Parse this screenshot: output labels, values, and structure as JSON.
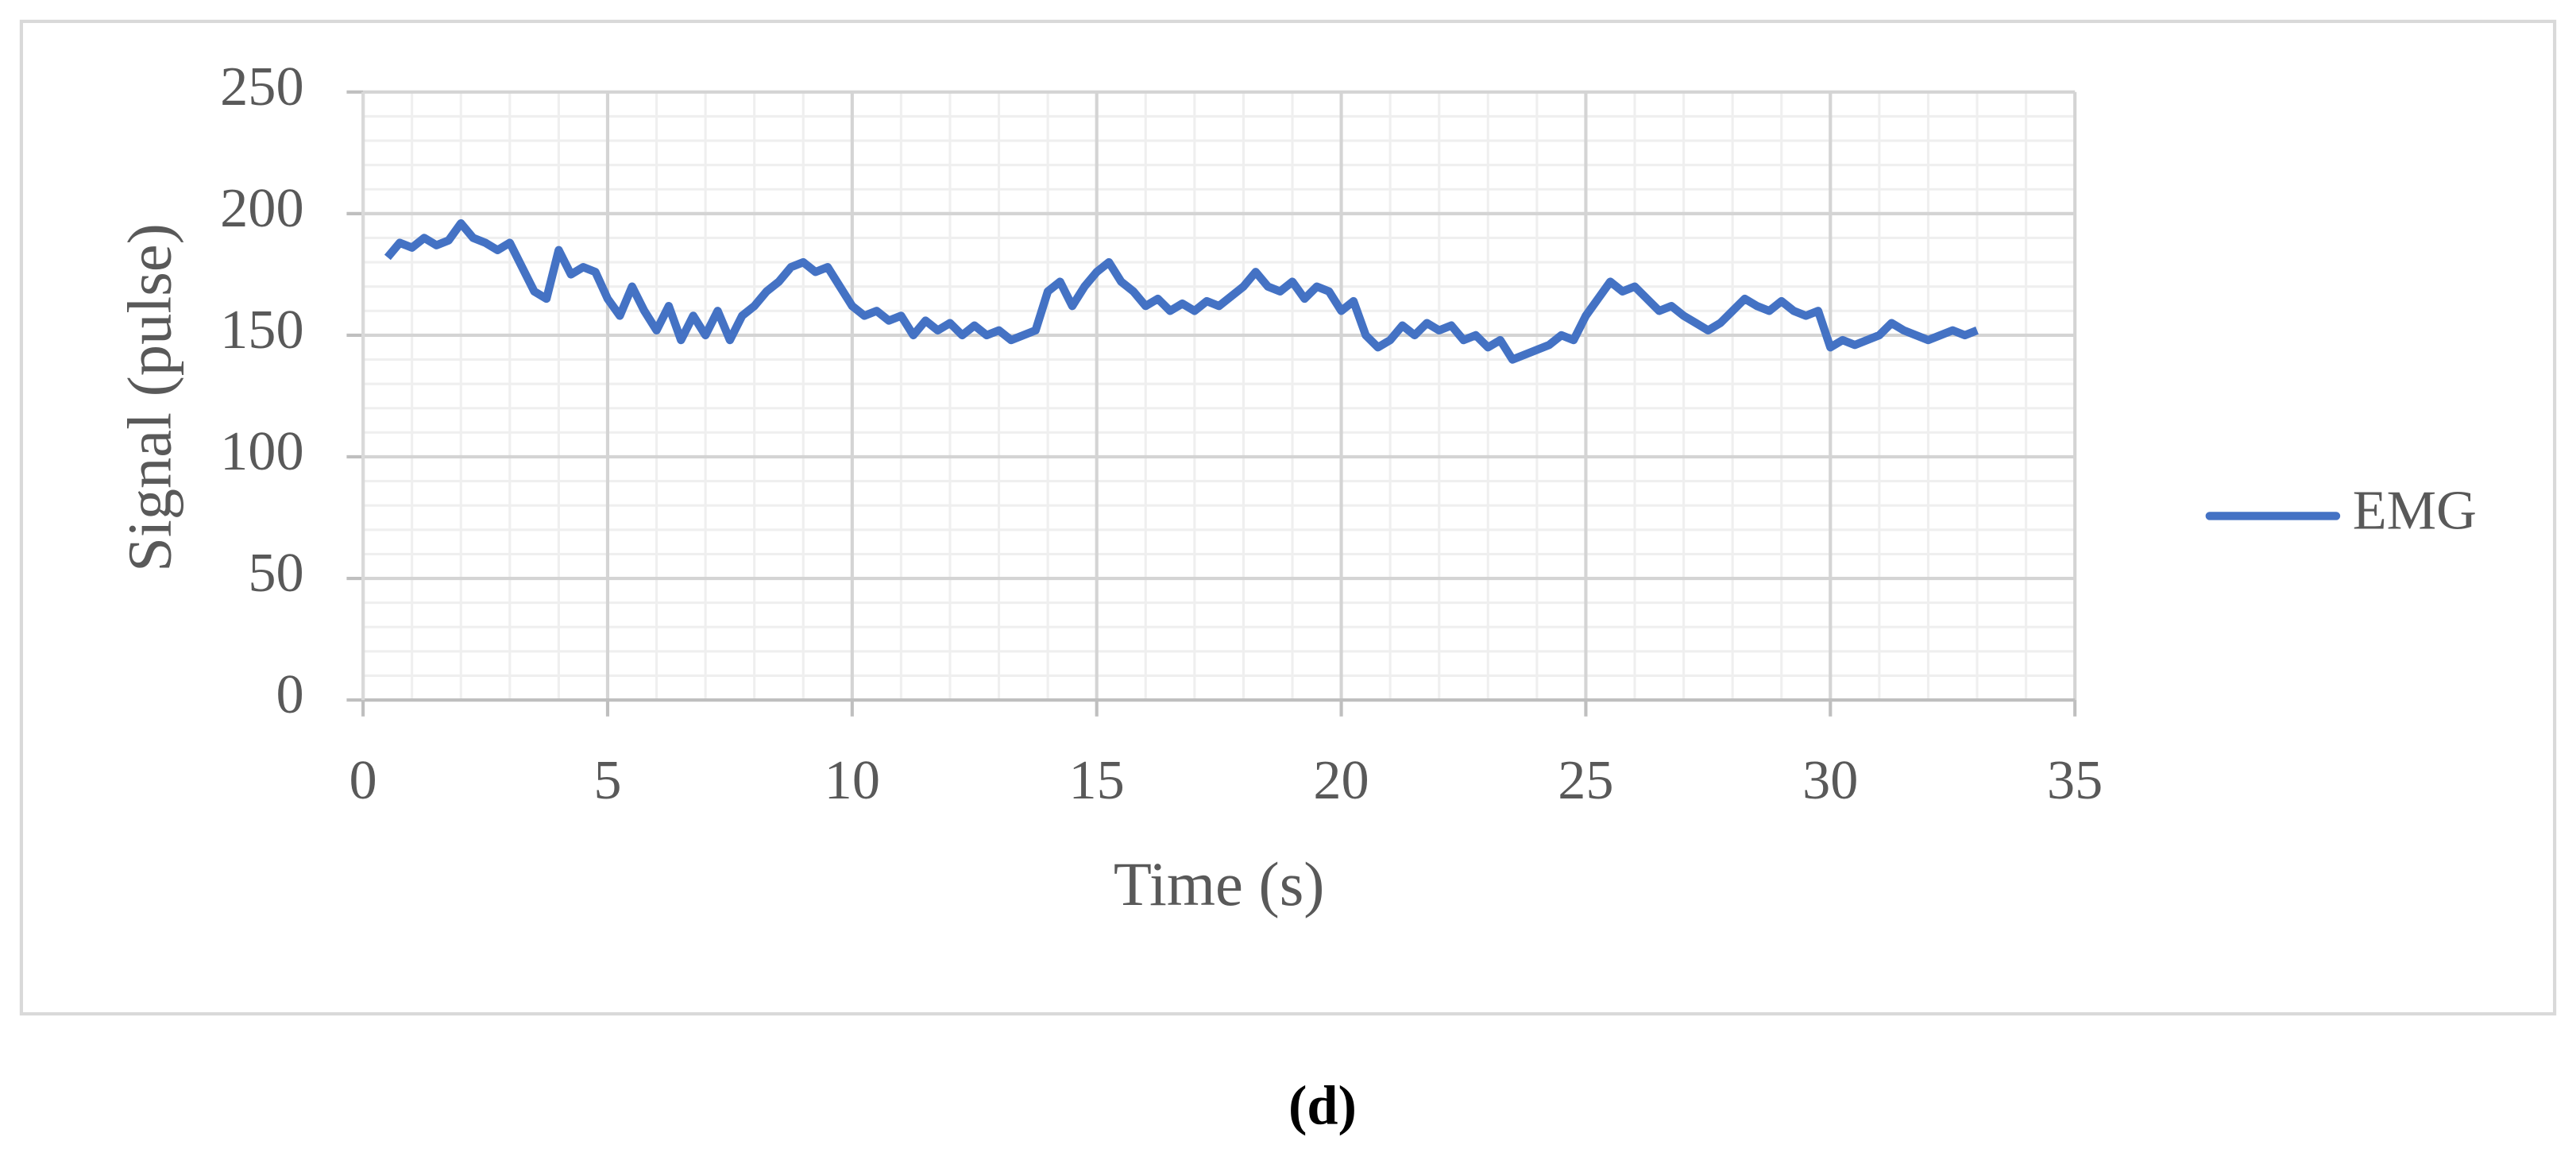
{
  "chart_data": {
    "type": "line",
    "x_label": "Time (s)",
    "y_label": "Signal (pulse)",
    "xlim": [
      0,
      35
    ],
    "xticks": [
      0,
      5,
      10,
      15,
      20,
      25,
      30,
      35
    ],
    "ylim": [
      0,
      250
    ],
    "yticks": [
      0,
      50,
      100,
      150,
      200,
      250
    ],
    "grid": true,
    "minor_grid": {
      "x": 1,
      "y": 10
    },
    "legend": "right",
    "x": [
      0.5,
      0.75,
      1.0,
      1.25,
      1.5,
      1.75,
      2.0,
      2.25,
      2.5,
      2.75,
      3.0,
      3.25,
      3.5,
      3.75,
      4.0,
      4.25,
      4.5,
      4.75,
      5.0,
      5.25,
      5.5,
      5.75,
      6.0,
      6.25,
      6.5,
      6.75,
      7.0,
      7.25,
      7.5,
      7.75,
      8.0,
      8.25,
      8.5,
      8.75,
      9.0,
      9.25,
      9.5,
      9.75,
      10.0,
      10.25,
      10.5,
      10.75,
      11.0,
      11.25,
      11.5,
      11.75,
      12.0,
      12.25,
      12.5,
      12.75,
      13.0,
      13.25,
      13.5,
      13.75,
      14.0,
      14.25,
      14.5,
      14.75,
      15.0,
      15.25,
      15.5,
      15.75,
      16.0,
      16.25,
      16.5,
      16.75,
      17.0,
      17.25,
      17.5,
      17.75,
      18.0,
      18.25,
      18.5,
      18.75,
      19.0,
      19.25,
      19.5,
      19.75,
      20.0,
      20.25,
      20.5,
      20.75,
      21.0,
      21.25,
      21.5,
      21.75,
      22.0,
      22.25,
      22.5,
      22.75,
      23.0,
      23.25,
      23.5,
      23.75,
      24.0,
      24.25,
      24.5,
      24.75,
      25.0,
      25.25,
      25.5,
      25.75,
      26.0,
      26.25,
      26.5,
      26.75,
      27.0,
      27.25,
      27.5,
      27.75,
      28.0,
      28.25,
      28.5,
      28.75,
      29.0,
      29.25,
      29.5,
      29.75,
      30.0,
      30.25,
      30.5,
      30.75,
      31.0,
      31.25,
      31.5,
      31.75,
      32.0,
      32.25,
      32.5,
      32.75,
      33.0
    ],
    "series": [
      {
        "name": "EMG",
        "color": "#4472c4",
        "values": [
          182,
          188,
          186,
          190,
          187,
          189,
          196,
          190,
          188,
          185,
          188,
          178,
          168,
          165,
          185,
          175,
          178,
          176,
          165,
          158,
          170,
          160,
          152,
          162,
          148,
          158,
          150,
          160,
          148,
          158,
          162,
          168,
          172,
          178,
          180,
          176,
          178,
          170,
          162,
          158,
          160,
          156,
          158,
          150,
          156,
          152,
          155,
          150,
          154,
          150,
          152,
          148,
          150,
          152,
          168,
          172,
          162,
          170,
          176,
          180,
          172,
          168,
          162,
          165,
          160,
          163,
          160,
          164,
          162,
          166,
          170,
          176,
          170,
          168,
          172,
          165,
          170,
          168,
          160,
          164,
          150,
          145,
          148,
          154,
          150,
          155,
          152,
          154,
          148,
          150,
          145,
          148,
          140,
          142,
          144,
          146,
          150,
          148,
          158,
          165,
          172,
          168,
          170,
          165,
          160,
          162,
          158,
          155,
          152,
          155,
          160,
          165,
          162,
          160,
          164,
          160,
          158,
          160,
          145,
          148,
          146,
          148,
          150,
          155,
          152,
          150,
          148,
          150,
          152,
          150,
          152
        ]
      }
    ]
  },
  "caption": "(d)"
}
